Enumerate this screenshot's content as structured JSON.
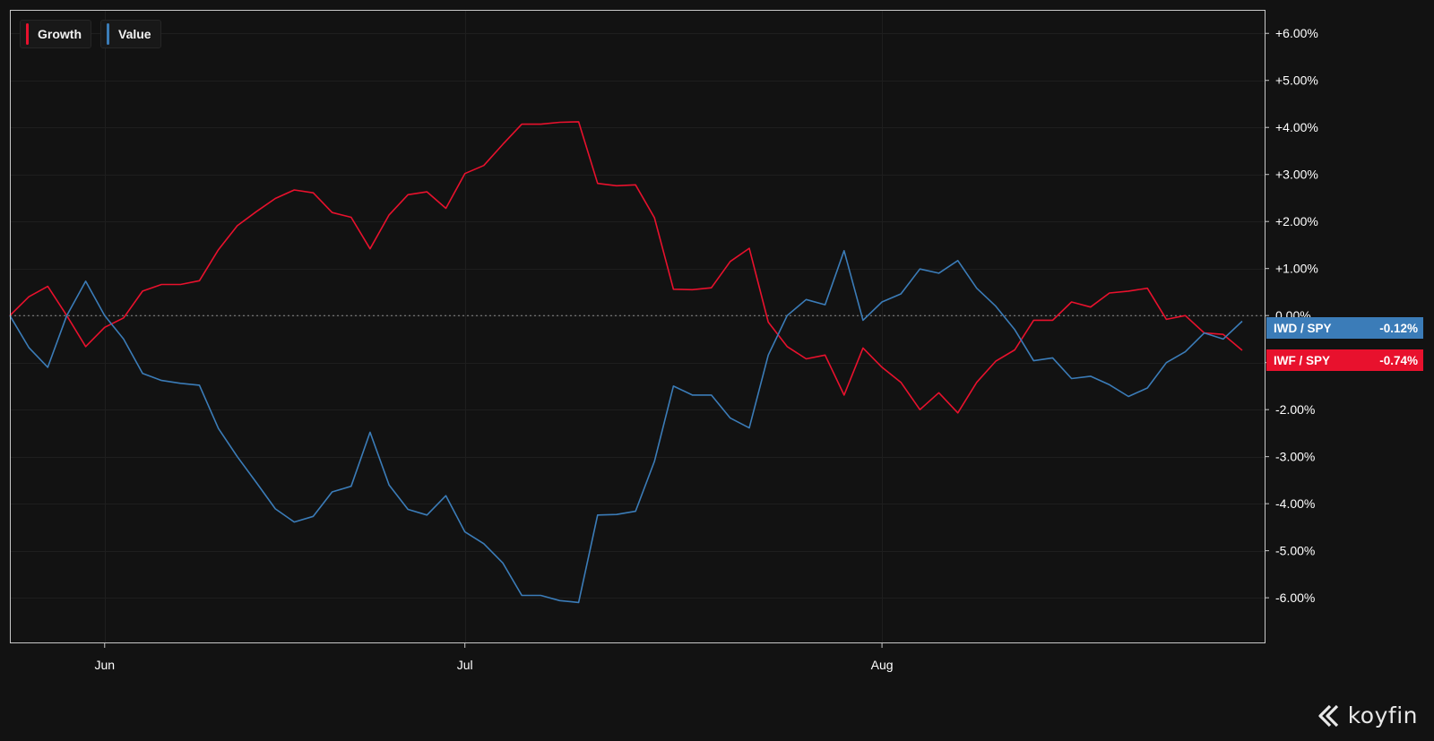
{
  "chart_data": {
    "type": "line",
    "x_ticks": [
      "Jun",
      "Jul",
      "Aug"
    ],
    "y_ticks": [
      "+6.00%",
      "+5.00%",
      "+4.00%",
      "+3.00%",
      "+2.00%",
      "+1.00%",
      "0.00%",
      "-1.00%",
      "-2.00%",
      "-3.00%",
      "-4.00%",
      "-5.00%",
      "-6.00%"
    ],
    "y_tick_values": [
      6,
      5,
      4,
      3,
      2,
      1,
      0,
      -1,
      -2,
      -3,
      -4,
      -5,
      -6
    ],
    "ylim": [
      -6.95,
      6.5
    ],
    "reference_line": 0,
    "grid": true,
    "legend_position": "top-left",
    "series": [
      {
        "name": "Growth",
        "color": "#e8112d",
        "last_label": "IWF / SPY",
        "last_value_label": "-0.74%",
        "values": [
          0.0,
          0.4,
          0.62,
          0.0,
          -0.66,
          -0.25,
          -0.05,
          0.52,
          0.66,
          0.66,
          0.74,
          1.4,
          1.91,
          2.21,
          2.49,
          2.67,
          2.61,
          2.19,
          2.09,
          1.42,
          2.14,
          2.57,
          2.63,
          2.28,
          3.02,
          3.19,
          3.64,
          4.07,
          4.07,
          4.11,
          4.12,
          2.81,
          2.76,
          2.78,
          2.08,
          0.56,
          0.55,
          0.59,
          1.15,
          1.43,
          -0.14,
          -0.66,
          -0.92,
          -0.84,
          -1.69,
          -0.69,
          -1.1,
          -1.42,
          -2.0,
          -1.64,
          -2.07,
          -1.42,
          -0.97,
          -0.73,
          -0.1,
          -0.1,
          0.29,
          0.18,
          0.48,
          0.52,
          0.58,
          -0.08,
          0.0,
          -0.37,
          -0.4,
          -0.74
        ]
      },
      {
        "name": "Value",
        "color": "#3b7cb8",
        "last_label": "IWD / SPY",
        "last_value_label": "-0.12%",
        "values": [
          0.0,
          -0.68,
          -1.1,
          0.0,
          0.73,
          0.0,
          -0.5,
          -1.23,
          -1.38,
          -1.44,
          -1.48,
          -2.4,
          -3.0,
          -3.55,
          -4.11,
          -4.39,
          -4.27,
          -3.75,
          -3.63,
          -2.48,
          -3.6,
          -4.12,
          -4.24,
          -3.83,
          -4.6,
          -4.85,
          -5.26,
          -5.95,
          -5.95,
          -6.06,
          -6.1,
          -4.24,
          -4.23,
          -4.16,
          -3.1,
          -1.5,
          -1.69,
          -1.69,
          -2.18,
          -2.39,
          -0.84,
          0.0,
          0.34,
          0.23,
          1.38,
          -0.1,
          0.29,
          0.46,
          0.99,
          0.9,
          1.17,
          0.58,
          0.2,
          -0.3,
          -0.96,
          -0.9,
          -1.34,
          -1.29,
          -1.47,
          -1.72,
          -1.54,
          -1.0,
          -0.77,
          -0.37,
          -0.5,
          -0.12
        ]
      }
    ]
  },
  "logo": {
    "text": "koyfin"
  }
}
